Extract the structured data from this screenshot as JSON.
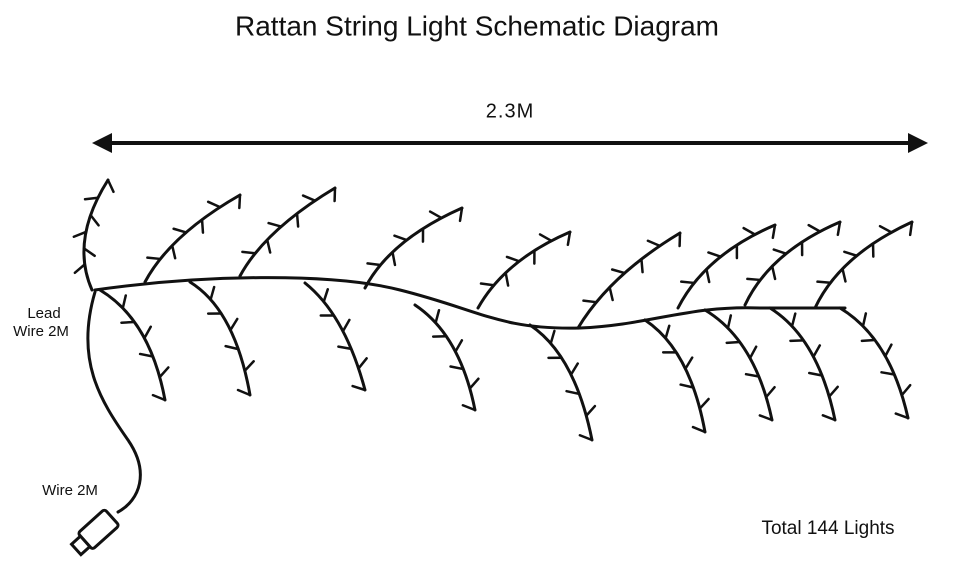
{
  "title": "Rattan String Light Schematic Diagram",
  "dimension": "2.3M",
  "lead_label": {
    "line1": "Lead",
    "line2": "Wire 2M"
  },
  "plug_label": "Wire 2M",
  "total_label": "Total 144 Lights"
}
